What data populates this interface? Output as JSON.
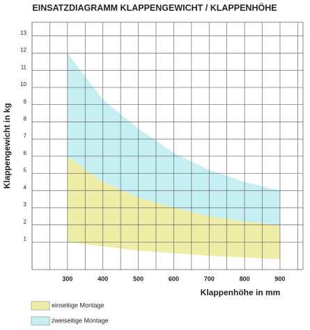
{
  "chart_data": {
    "type": "band",
    "title": "EINSATZDIAGRAMM KLAPPENGEWICHT / KLAPPENHÖHE",
    "x_label": "Klappenhöhe in mm",
    "y_label": "Klappengewicht in kg",
    "x": [
      300,
      400,
      500,
      600,
      700,
      800,
      900
    ],
    "series": [
      {
        "name": "einseitige Montage",
        "color": "#eeeea6",
        "low": [
          1,
          0.75,
          0.5,
          0.35,
          0.2,
          0.1,
          0
        ],
        "high": [
          6,
          4.5,
          3.6,
          3,
          2.5,
          2.2,
          2
        ]
      },
      {
        "name": "zweiseitige Montage",
        "color": "#c6eff3",
        "low": [
          6,
          4.5,
          3.6,
          3,
          2.5,
          2.2,
          2
        ],
        "high": [
          12,
          9.3,
          7.6,
          6.2,
          5.2,
          4.5,
          4
        ]
      }
    ],
    "xlim": [
      200,
      965
    ],
    "ylim": [
      -0.6,
      13.8
    ],
    "xticks": [
      300,
      400,
      500,
      600,
      700,
      800,
      900
    ],
    "xminor": [
      200,
      250,
      350,
      450,
      550,
      650,
      750,
      850,
      950
    ],
    "yticks": [
      1,
      2,
      3,
      4,
      5,
      6,
      7,
      8,
      9,
      10,
      11,
      12,
      13
    ],
    "grid": true
  }
}
